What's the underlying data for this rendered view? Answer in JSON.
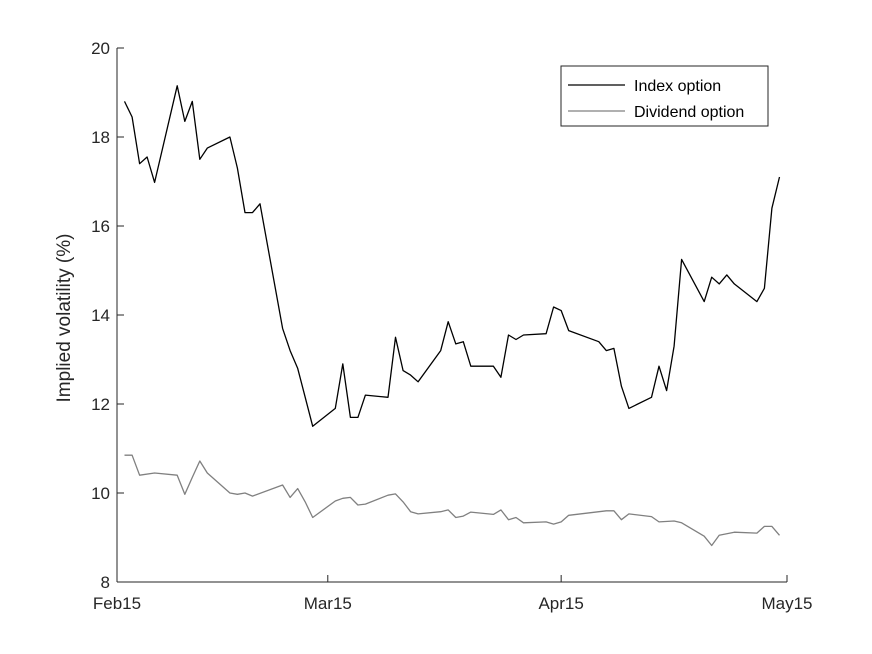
{
  "chart_data": {
    "type": "line",
    "xlabel": "",
    "ylabel": "Implied volatility (%)",
    "xlim": [
      "2015-02-01",
      "2015-05-01"
    ],
    "ylim": [
      8,
      20
    ],
    "x_ticks": [
      "Feb15",
      "Mar15",
      "Apr15",
      "May15"
    ],
    "y_ticks": [
      8,
      10,
      12,
      14,
      16,
      18,
      20
    ],
    "grid": false,
    "legend_position": "top-right",
    "series": [
      {
        "name": "Index option",
        "color": "#000000",
        "points": [
          [
            "2015-02-02",
            18.8
          ],
          [
            "2015-02-03",
            18.45
          ],
          [
            "2015-02-04",
            17.4
          ],
          [
            "2015-02-05",
            17.55
          ],
          [
            "2015-02-06",
            16.98
          ],
          [
            "2015-02-09",
            19.15
          ],
          [
            "2015-02-10",
            18.35
          ],
          [
            "2015-02-11",
            18.8
          ],
          [
            "2015-02-12",
            17.5
          ],
          [
            "2015-02-13",
            17.75
          ],
          [
            "2015-02-16",
            18.0
          ],
          [
            "2015-02-17",
            17.3
          ],
          [
            "2015-02-18",
            16.3
          ],
          [
            "2015-02-19",
            16.3
          ],
          [
            "2015-02-20",
            16.5
          ],
          [
            "2015-02-23",
            13.7
          ],
          [
            "2015-02-24",
            13.2
          ],
          [
            "2015-02-25",
            12.8
          ],
          [
            "2015-02-26",
            12.15
          ],
          [
            "2015-02-27",
            11.5
          ],
          [
            "2015-03-02",
            11.9
          ],
          [
            "2015-03-03",
            12.9
          ],
          [
            "2015-03-04",
            11.7
          ],
          [
            "2015-03-05",
            11.7
          ],
          [
            "2015-03-06",
            12.2
          ],
          [
            "2015-03-09",
            12.15
          ],
          [
            "2015-03-10",
            13.5
          ],
          [
            "2015-03-11",
            12.75
          ],
          [
            "2015-03-12",
            12.65
          ],
          [
            "2015-03-13",
            12.5
          ],
          [
            "2015-03-16",
            13.2
          ],
          [
            "2015-03-17",
            13.85
          ],
          [
            "2015-03-18",
            13.35
          ],
          [
            "2015-03-19",
            13.4
          ],
          [
            "2015-03-20",
            12.85
          ],
          [
            "2015-03-23",
            12.85
          ],
          [
            "2015-03-24",
            12.6
          ],
          [
            "2015-03-25",
            13.55
          ],
          [
            "2015-03-26",
            13.45
          ],
          [
            "2015-03-27",
            13.55
          ],
          [
            "2015-03-30",
            13.58
          ],
          [
            "2015-03-31",
            14.18
          ],
          [
            "2015-04-01",
            14.1
          ],
          [
            "2015-04-02",
            13.65
          ],
          [
            "2015-04-06",
            13.4
          ],
          [
            "2015-04-07",
            13.2
          ],
          [
            "2015-04-08",
            13.25
          ],
          [
            "2015-04-09",
            12.4
          ],
          [
            "2015-04-10",
            11.9
          ],
          [
            "2015-04-13",
            12.15
          ],
          [
            "2015-04-14",
            12.85
          ],
          [
            "2015-04-15",
            12.3
          ],
          [
            "2015-04-16",
            13.3
          ],
          [
            "2015-04-17",
            15.25
          ],
          [
            "2015-04-20",
            14.3
          ],
          [
            "2015-04-21",
            14.85
          ],
          [
            "2015-04-22",
            14.7
          ],
          [
            "2015-04-23",
            14.9
          ],
          [
            "2015-04-24",
            14.7
          ],
          [
            "2015-04-27",
            14.3
          ],
          [
            "2015-04-28",
            14.6
          ],
          [
            "2015-04-29",
            16.4
          ],
          [
            "2015-04-30",
            17.1
          ]
        ]
      },
      {
        "name": "Dividend option",
        "color": "#808080",
        "points": [
          [
            "2015-02-02",
            10.85
          ],
          [
            "2015-02-03",
            10.85
          ],
          [
            "2015-02-04",
            10.4
          ],
          [
            "2015-02-06",
            10.45
          ],
          [
            "2015-02-09",
            10.4
          ],
          [
            "2015-02-10",
            9.97
          ],
          [
            "2015-02-11",
            10.35
          ],
          [
            "2015-02-12",
            10.72
          ],
          [
            "2015-02-13",
            10.45
          ],
          [
            "2015-02-16",
            10.0
          ],
          [
            "2015-02-17",
            9.97
          ],
          [
            "2015-02-18",
            10.0
          ],
          [
            "2015-02-19",
            9.93
          ],
          [
            "2015-02-23",
            10.18
          ],
          [
            "2015-02-24",
            9.9
          ],
          [
            "2015-02-25",
            10.1
          ],
          [
            "2015-02-26",
            9.8
          ],
          [
            "2015-02-27",
            9.45
          ],
          [
            "2015-03-02",
            9.82
          ],
          [
            "2015-03-03",
            9.88
          ],
          [
            "2015-03-04",
            9.9
          ],
          [
            "2015-03-05",
            9.73
          ],
          [
            "2015-03-06",
            9.75
          ],
          [
            "2015-03-09",
            9.95
          ],
          [
            "2015-03-10",
            9.98
          ],
          [
            "2015-03-11",
            9.8
          ],
          [
            "2015-03-12",
            9.58
          ],
          [
            "2015-03-13",
            9.53
          ],
          [
            "2015-03-16",
            9.58
          ],
          [
            "2015-03-17",
            9.62
          ],
          [
            "2015-03-18",
            9.45
          ],
          [
            "2015-03-19",
            9.48
          ],
          [
            "2015-03-20",
            9.57
          ],
          [
            "2015-03-23",
            9.52
          ],
          [
            "2015-03-24",
            9.62
          ],
          [
            "2015-03-25",
            9.4
          ],
          [
            "2015-03-26",
            9.45
          ],
          [
            "2015-03-27",
            9.33
          ],
          [
            "2015-03-30",
            9.35
          ],
          [
            "2015-03-31",
            9.3
          ],
          [
            "2015-04-01",
            9.35
          ],
          [
            "2015-04-02",
            9.5
          ],
          [
            "2015-04-07",
            9.6
          ],
          [
            "2015-04-08",
            9.6
          ],
          [
            "2015-04-09",
            9.4
          ],
          [
            "2015-04-10",
            9.53
          ],
          [
            "2015-04-13",
            9.47
          ],
          [
            "2015-04-14",
            9.35
          ],
          [
            "2015-04-16",
            9.37
          ],
          [
            "2015-04-17",
            9.33
          ],
          [
            "2015-04-20",
            9.03
          ],
          [
            "2015-04-21",
            8.82
          ],
          [
            "2015-04-22",
            9.05
          ],
          [
            "2015-04-24",
            9.12
          ],
          [
            "2015-04-27",
            9.1
          ],
          [
            "2015-04-28",
            9.25
          ],
          [
            "2015-04-29",
            9.25
          ],
          [
            "2015-04-30",
            9.05
          ]
        ]
      }
    ]
  }
}
